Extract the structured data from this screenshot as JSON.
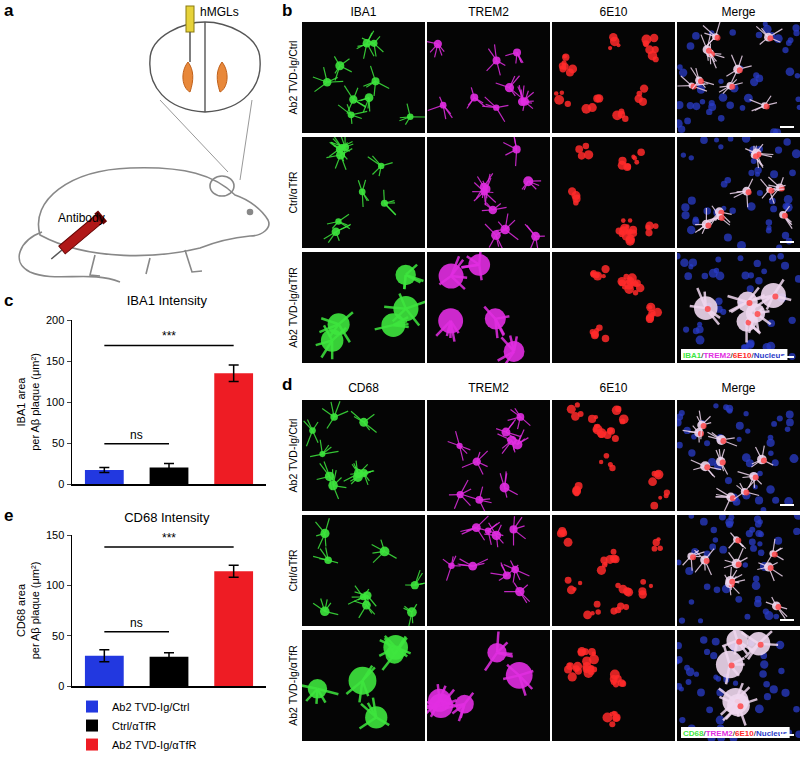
{
  "chart_data": [
    {
      "type": "bar",
      "title": "IBA1 Intensity",
      "y_label": [
        "IBA1 area",
        "per Aβ plaque (μm²)"
      ],
      "categories": [
        "Ab2 TVD-Ig/Ctrl",
        "Ctrl/αTfR",
        "Ab2 TVD-Ig/αTfR"
      ],
      "values": [
        17,
        20,
        135
      ],
      "errors": [
        3,
        5,
        10
      ],
      "colors": [
        "#2238e0",
        "#000000",
        "#ee1c24"
      ],
      "ylim": [
        0,
        200
      ],
      "yticks": [
        0,
        50,
        100,
        150,
        200
      ],
      "grid": false,
      "tick_labels": "y",
      "significance": [
        {
          "from": 0,
          "to": 1,
          "text": "ns"
        },
        {
          "from": 0,
          "to": 2,
          "text": "***"
        }
      ]
    },
    {
      "type": "bar",
      "title": "CD68 Intensity",
      "y_label": [
        "CD68 area",
        "per Aβ plaque (μm²)"
      ],
      "categories": [
        "Ab2 TVD-Ig/Ctrl",
        "Ctrl/αTfR",
        "Ab2 TVD-Ig/αTfR"
      ],
      "values": [
        30,
        29,
        114
      ],
      "errors": [
        6,
        4,
        6
      ],
      "colors": [
        "#2238e0",
        "#000000",
        "#ee1c24"
      ],
      "ylim": [
        0,
        150
      ],
      "yticks": [
        0,
        50,
        100,
        150
      ],
      "grid": false,
      "tick_labels": "y",
      "legend": "bottom left",
      "significance": [
        {
          "from": 0,
          "to": 1,
          "text": "ns"
        },
        {
          "from": 0,
          "to": 2,
          "text": "***"
        }
      ]
    }
  ],
  "figure": {
    "panel_a": {
      "letter": "a",
      "labels": {
        "injection_brain": "hMGLs",
        "injection_tail": "Antibody"
      }
    },
    "panel_b": {
      "letter": "b",
      "columns": [
        "IBA1",
        "TREM2",
        "6E10",
        "Merge"
      ],
      "rows": [
        "Ab2 TVD-Ig/Ctrl",
        "Ctrl/αTfR",
        "Ab2 TVD-Ig/αTfR"
      ],
      "merge_caption": [
        "IBA1",
        "TREM2",
        "6E10",
        "Nucleus"
      ],
      "separator": "/"
    },
    "panel_c": {
      "letter": "c"
    },
    "panel_d": {
      "letter": "d",
      "columns": [
        "CD68",
        "TREM2",
        "6E10",
        "Merge"
      ],
      "rows": [
        "Ab2 TVD-Ig/Ctrl",
        "Ctrl/αTfR",
        "Ab2 TVD-Ig/αTfR"
      ],
      "merge_caption": [
        "CD68",
        "TREM2",
        "6E10",
        "Nucleus"
      ],
      "separator": "/"
    },
    "panel_e": {
      "letter": "e"
    }
  }
}
